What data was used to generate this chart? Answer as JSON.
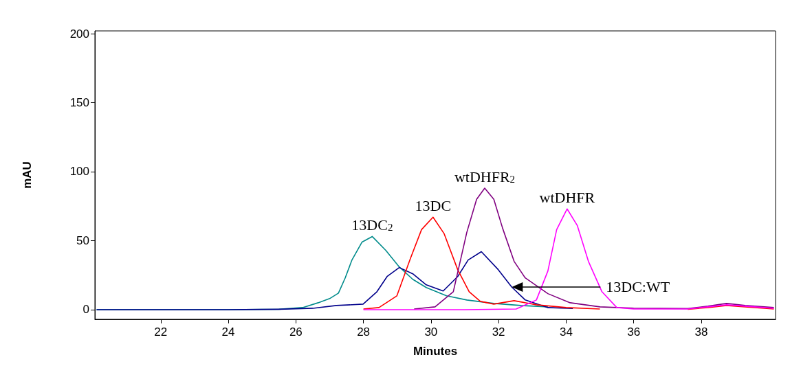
{
  "chart_data": {
    "type": "line",
    "xlabel": "Minutes",
    "ylabel": "mAU",
    "xlim": [
      20.05,
      40.2
    ],
    "ylim": [
      -7,
      202
    ],
    "xticks": [
      22,
      24,
      26,
      28,
      30,
      32,
      34,
      36,
      38
    ],
    "yticks": [
      0,
      50,
      100,
      150,
      200
    ],
    "grid": false,
    "series": [
      {
        "color": "#008b8b",
        "x": [
          20.1,
          24,
          25.5,
          26.2,
          26.66,
          27.0,
          27.26,
          27.46,
          27.66,
          27.96,
          28.26,
          28.66,
          29.06,
          29.46,
          29.86,
          30.46,
          31.06,
          31.86,
          32.66,
          33.46
        ],
        "values": [
          0,
          0,
          0.3,
          1.5,
          5,
          8,
          12,
          23,
          36,
          49,
          53,
          43,
          31,
          22,
          16,
          10,
          7,
          4.5,
          3,
          2
        ]
      },
      {
        "name": "13DC:WT",
        "color": "#00008b",
        "x": [
          20.1,
          24,
          25.5,
          26.5,
          27.2,
          27.99,
          28.4,
          28.7,
          29.06,
          29.46,
          29.86,
          30.36,
          30.79,
          31.1,
          31.49,
          31.99,
          32.39,
          32.79,
          33.46,
          34.2
        ],
        "values": [
          0,
          0,
          0.3,
          1,
          3,
          4,
          13,
          24,
          30.5,
          26,
          18,
          13.5,
          24,
          36,
          42,
          29,
          16.4,
          7,
          1.5,
          0.8
        ]
      },
      {
        "color": "#ff0000",
        "x": [
          28,
          28.46,
          28.99,
          29.39,
          29.72,
          30.06,
          30.39,
          30.79,
          31.13,
          31.46,
          31.86,
          32.46,
          33.12,
          34,
          35,
          36,
          37.6,
          38.2,
          38.75,
          39.3,
          40.15
        ],
        "values": [
          0.5,
          1.5,
          10,
          37,
          58,
          67,
          55,
          29,
          13,
          6,
          4,
          6.5,
          3.5,
          1.5,
          0.5,
          null,
          0.3,
          1.5,
          3,
          2,
          0.5
        ]
      },
      {
        "color": "#800080",
        "x": [
          29.5,
          30.12,
          30.66,
          31.06,
          31.35,
          31.59,
          31.86,
          32.12,
          32.46,
          32.79,
          33.46,
          34.12,
          35,
          36,
          37.6,
          38.2,
          38.75,
          39.3,
          40.15
        ],
        "values": [
          0.5,
          2,
          13,
          56,
          80,
          88,
          80,
          59,
          35,
          23,
          11.6,
          5,
          2,
          1,
          0.8,
          2.5,
          4.5,
          3,
          1.5
        ]
      },
      {
        "color": "#ff00ff",
        "x": [
          28,
          31,
          32.52,
          33.12,
          33.46,
          33.72,
          34.03,
          34.33,
          34.66,
          35.06,
          35.5,
          36,
          37.6,
          38.2,
          38.75,
          39.3,
          40.15
        ],
        "values": [
          0,
          0,
          0.5,
          7,
          28,
          58,
          73,
          61,
          35,
          13,
          1.5,
          0.5,
          0.5,
          2,
          3.5,
          2.5,
          1
        ]
      }
    ],
    "annotations": [
      {
        "text": "13DC$_{2}$",
        "x": 28.26,
        "y": 53
      },
      {
        "text": "13DC",
        "x": 30.06,
        "y": 67
      },
      {
        "text": "wtDHFR$_{2}$",
        "x": 31.59,
        "y": 88
      },
      {
        "text": "wtDHFR",
        "x": 34.03,
        "y": 73
      }
    ]
  }
}
